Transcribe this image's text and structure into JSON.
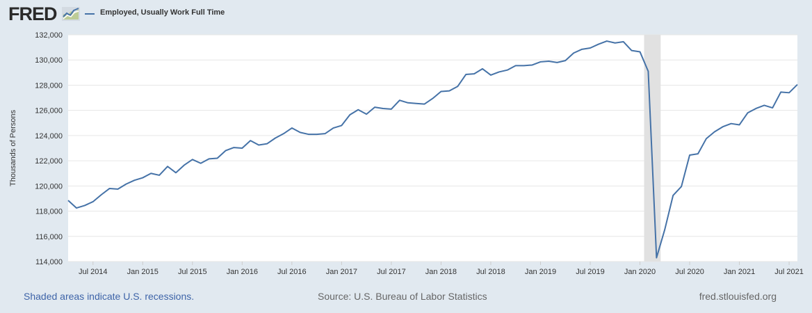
{
  "logo": {
    "text": "FRED",
    "icon": "line-chart-logo-icon"
  },
  "legend": {
    "label": "Employed, Usually Work Full Time",
    "color": "#4572a7"
  },
  "footer": {
    "recession_note": "Shaded areas indicate U.S. recessions.",
    "source": "Source: U.S. Bureau of Labor Statistics",
    "site": "fred.stlouisfed.org"
  },
  "chart_data": {
    "type": "line",
    "title": "Employed, Usually Work Full Time",
    "xlabel": "",
    "ylabel": "Thousands of Persons",
    "ylim": [
      114000,
      132000
    ],
    "yticks": [
      114000,
      116000,
      118000,
      120000,
      122000,
      124000,
      126000,
      128000,
      130000,
      132000
    ],
    "ytick_labels": [
      "114,000",
      "116,000",
      "118,000",
      "120,000",
      "122,000",
      "124,000",
      "126,000",
      "128,000",
      "130,000",
      "132,000"
    ],
    "x_start": "2014-04",
    "x_end": "2021-09",
    "x_tick_labels": [
      "Jul 2014",
      "Jan 2015",
      "Jul 2015",
      "Jan 2016",
      "Jul 2016",
      "Jan 2017",
      "Jul 2017",
      "Jan 2018",
      "Jul 2018",
      "Jan 2019",
      "Jul 2019",
      "Jan 2020",
      "Jul 2020",
      "Jan 2021",
      "Jul 2021"
    ],
    "x_tick_months": [
      3,
      9,
      15,
      21,
      27,
      33,
      39,
      45,
      51,
      57,
      63,
      69,
      75,
      81,
      87
    ],
    "recession": {
      "start_month": 70,
      "end_month": 72
    },
    "grid": true,
    "series": [
      {
        "name": "Employed, Usually Work Full Time",
        "color": "#4572a7",
        "values": [
          118850,
          118250,
          118450,
          118750,
          119300,
          119800,
          119750,
          120150,
          120450,
          120650,
          121000,
          120850,
          121550,
          121050,
          121650,
          122100,
          121800,
          122150,
          122200,
          122800,
          123050,
          123000,
          123600,
          123250,
          123350,
          123800,
          124150,
          124600,
          124250,
          124100,
          124100,
          124150,
          124600,
          124800,
          125650,
          126050,
          125700,
          126250,
          126150,
          126100,
          126800,
          126600,
          126550,
          126500,
          126950,
          127500,
          127550,
          127900,
          128850,
          128900,
          129300,
          128800,
          129050,
          129200,
          129550,
          129550,
          129600,
          129850,
          129900,
          129800,
          129950,
          130550,
          130850,
          130950,
          131250,
          131500,
          131350,
          131450,
          130750,
          130650,
          129100,
          114300,
          116550,
          119250,
          119950,
          122450,
          122550,
          123750,
          124300,
          124700,
          124950,
          124850,
          125800,
          126150,
          126400,
          126200,
          127450,
          127400,
          128050
        ]
      }
    ]
  }
}
